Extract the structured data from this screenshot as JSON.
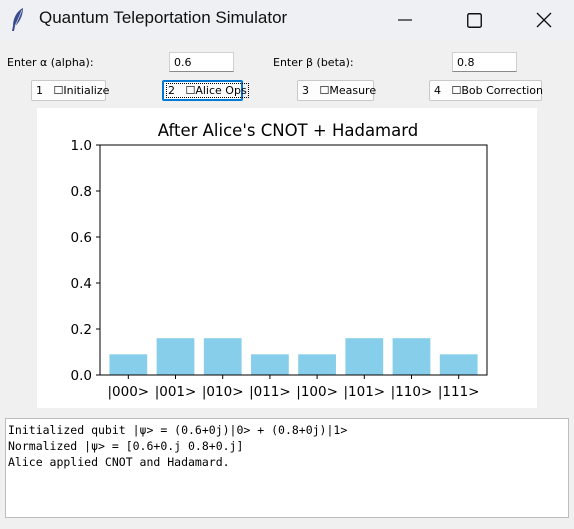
{
  "window": {
    "title": "Quantum Teleportation Simulator"
  },
  "inputs": {
    "alpha_label": "Enter α (alpha):",
    "alpha_value": "0.6",
    "beta_label": "Enter β (beta):",
    "beta_value": "0.8"
  },
  "buttons": [
    {
      "label": "1   ☐Initialize"
    },
    {
      "label": "2   ☐Alice Ops"
    },
    {
      "label": "3   ☐Measure"
    },
    {
      "label": "4   ☐Bob Correction"
    }
  ],
  "chart_data": {
    "type": "bar",
    "title": "After Alice's CNOT + Hadamard",
    "categories": [
      "|000>",
      "|001>",
      "|010>",
      "|011>",
      "|100>",
      "|101>",
      "|110>",
      "|111>"
    ],
    "values": [
      0.09,
      0.16,
      0.16,
      0.09,
      0.09,
      0.16,
      0.16,
      0.09
    ],
    "ylim": [
      0.0,
      1.0
    ],
    "yticks": [
      "0.0",
      "0.2",
      "0.4",
      "0.6",
      "0.8",
      "1.0"
    ],
    "bar_color": "#87ceeb",
    "grid": false
  },
  "log": {
    "lines": [
      "Initialized qubit |ψ> = (0.6+0j)|0> + (0.8+0j)|1>",
      "Normalized |ψ> = [0.6+0.j 0.8+0.j]",
      "Alice applied CNOT and Hadamard."
    ]
  }
}
